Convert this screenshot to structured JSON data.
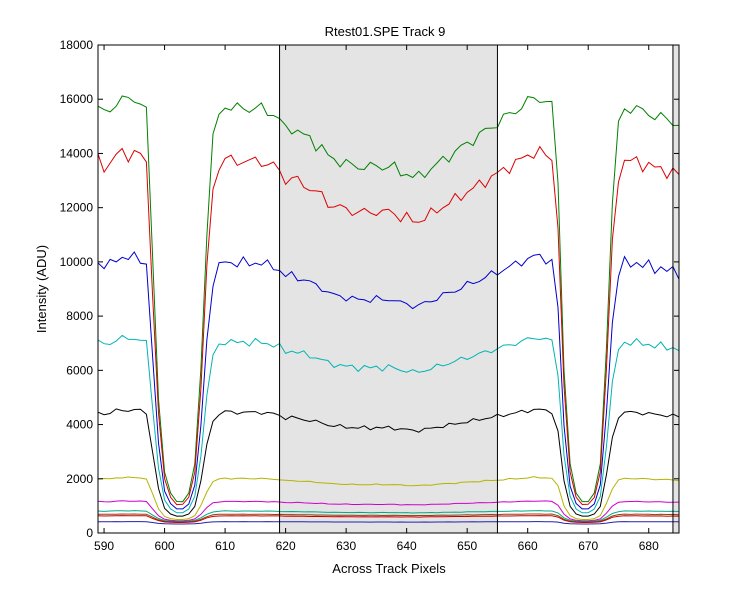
{
  "chart_data": {
    "type": "line",
    "title": "Rtest01.SPE   Track 9",
    "xlabel": "Across Track Pixels",
    "ylabel": "Intensity (ADU)",
    "xlim": [
      589,
      685
    ],
    "ylim": [
      0,
      18000
    ],
    "xticks": [
      "590",
      "600",
      "610",
      "620",
      "630",
      "640",
      "650",
      "660",
      "670",
      "680"
    ],
    "yticks": [
      "0",
      "2000",
      "4000",
      "6000",
      "8000",
      "10000",
      "12000",
      "14000",
      "16000",
      "18000"
    ],
    "grid": false,
    "legend": "none",
    "shaded_regions": [
      {
        "x0": 619,
        "x1": 655,
        "color": "#e4e4e4"
      },
      {
        "x0": 684,
        "x1": 685,
        "color": "#e4e4e4"
      }
    ],
    "vertical_lines": [
      619,
      655,
      684
    ],
    "template": {
      "x": [
        589,
        590,
        591,
        592,
        593,
        594,
        595,
        596,
        597,
        598,
        599,
        600,
        601,
        602,
        603,
        604,
        605,
        606,
        607,
        608,
        609,
        610,
        611,
        612,
        613,
        614,
        615,
        616,
        617,
        618,
        619,
        620,
        621,
        622,
        623,
        624,
        625,
        626,
        627,
        628,
        629,
        630,
        631,
        632,
        633,
        634,
        635,
        636,
        637,
        638,
        639,
        640,
        641,
        642,
        643,
        644,
        645,
        646,
        647,
        648,
        649,
        650,
        651,
        652,
        653,
        654,
        655,
        656,
        657,
        658,
        659,
        660,
        661,
        662,
        663,
        664,
        665,
        666,
        667,
        668,
        669,
        670,
        671,
        672,
        673,
        674,
        675,
        676,
        677,
        678,
        679,
        680,
        681,
        682,
        683,
        684,
        685
      ],
      "p": [
        0.98,
        0.96,
        0.97,
        0.99,
        1.0,
        0.99,
        1.0,
        0.99,
        0.97,
        0.62,
        0.28,
        0.1,
        0.05,
        0.03,
        0.03,
        0.05,
        0.12,
        0.35,
        0.68,
        0.9,
        0.96,
        0.98,
        0.98,
        0.97,
        0.98,
        0.97,
        0.98,
        0.97,
        0.97,
        0.96,
        0.95,
        0.92,
        0.93,
        0.92,
        0.91,
        0.9,
        0.89,
        0.88,
        0.86,
        0.85,
        0.85,
        0.84,
        0.84,
        0.83,
        0.84,
        0.83,
        0.84,
        0.83,
        0.84,
        0.83,
        0.82,
        0.82,
        0.81,
        0.81,
        0.82,
        0.83,
        0.84,
        0.85,
        0.86,
        0.87,
        0.88,
        0.89,
        0.9,
        0.91,
        0.92,
        0.93,
        0.94,
        0.95,
        0.96,
        0.97,
        0.98,
        0.99,
        1.0,
        1.0,
        0.99,
        0.98,
        0.8,
        0.35,
        0.12,
        0.05,
        0.03,
        0.03,
        0.05,
        0.12,
        0.4,
        0.75,
        0.93,
        0.98,
        0.97,
        0.98,
        0.96,
        0.97,
        0.95,
        0.96,
        0.94,
        0.95,
        0.93
      ]
    },
    "series": [
      {
        "color": "#008000",
        "baseline": 700,
        "amplitude": 15350
      },
      {
        "color": "#dd0000",
        "baseline": 650,
        "amplitude": 13400
      },
      {
        "color": "#0000cc",
        "baseline": 600,
        "amplitude": 9600
      },
      {
        "color": "#00b4b4",
        "baseline": 550,
        "amplitude": 6650
      },
      {
        "color": "#000000",
        "baseline": 500,
        "amplitude": 4050
      },
      {
        "color": "#b4b400",
        "baseline": 450,
        "amplitude": 1600
      },
      {
        "color": "#cc00cc",
        "baseline": 430,
        "amplitude": 750
      },
      {
        "color": "#00aa88",
        "baseline": 420,
        "amplitude": 400
      },
      {
        "color": "#8b4513",
        "baseline": 400,
        "amplitude": 300
      },
      {
        "color": "#cc0000",
        "baseline": 380,
        "amplitude": 260
      },
      {
        "color": "#2222aa",
        "baseline": 330,
        "amplitude": 90
      }
    ]
  }
}
